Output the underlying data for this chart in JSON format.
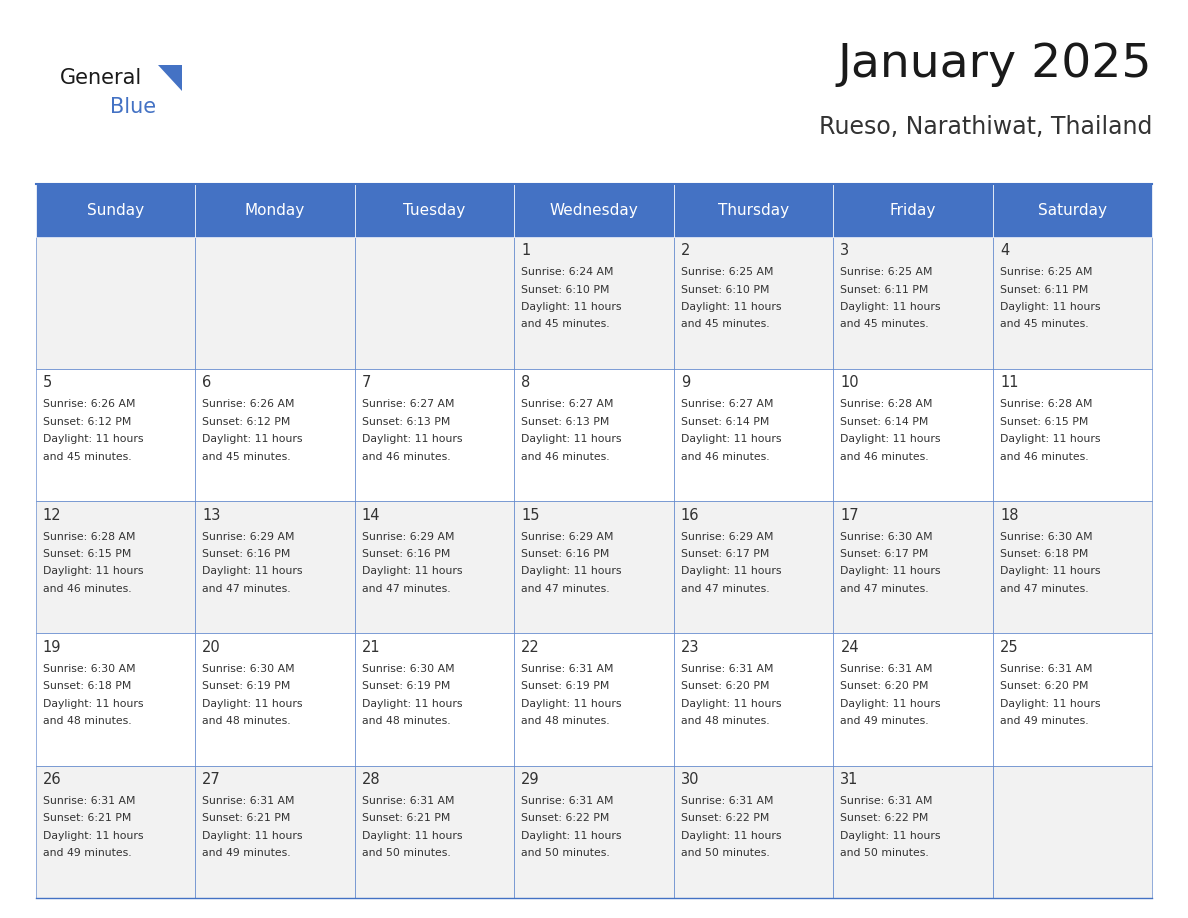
{
  "title": "January 2025",
  "subtitle": "Rueso, Narathiwat, Thailand",
  "days_of_week": [
    "Sunday",
    "Monday",
    "Tuesday",
    "Wednesday",
    "Thursday",
    "Friday",
    "Saturday"
  ],
  "header_bg": "#4472C4",
  "header_text": "#FFFFFF",
  "cell_bg_light": "#F2F2F2",
  "cell_bg_white": "#FFFFFF",
  "border_color": "#4472C4",
  "text_color": "#333333",
  "calendar_data": [
    [
      null,
      null,
      null,
      {
        "day": 1,
        "sunrise": "6:24 AM",
        "sunset": "6:10 PM",
        "daylight": "11 hours and 45 minutes."
      },
      {
        "day": 2,
        "sunrise": "6:25 AM",
        "sunset": "6:10 PM",
        "daylight": "11 hours and 45 minutes."
      },
      {
        "day": 3,
        "sunrise": "6:25 AM",
        "sunset": "6:11 PM",
        "daylight": "11 hours and 45 minutes."
      },
      {
        "day": 4,
        "sunrise": "6:25 AM",
        "sunset": "6:11 PM",
        "daylight": "11 hours and 45 minutes."
      }
    ],
    [
      {
        "day": 5,
        "sunrise": "6:26 AM",
        "sunset": "6:12 PM",
        "daylight": "11 hours and 45 minutes."
      },
      {
        "day": 6,
        "sunrise": "6:26 AM",
        "sunset": "6:12 PM",
        "daylight": "11 hours and 45 minutes."
      },
      {
        "day": 7,
        "sunrise": "6:27 AM",
        "sunset": "6:13 PM",
        "daylight": "11 hours and 46 minutes."
      },
      {
        "day": 8,
        "sunrise": "6:27 AM",
        "sunset": "6:13 PM",
        "daylight": "11 hours and 46 minutes."
      },
      {
        "day": 9,
        "sunrise": "6:27 AM",
        "sunset": "6:14 PM",
        "daylight": "11 hours and 46 minutes."
      },
      {
        "day": 10,
        "sunrise": "6:28 AM",
        "sunset": "6:14 PM",
        "daylight": "11 hours and 46 minutes."
      },
      {
        "day": 11,
        "sunrise": "6:28 AM",
        "sunset": "6:15 PM",
        "daylight": "11 hours and 46 minutes."
      }
    ],
    [
      {
        "day": 12,
        "sunrise": "6:28 AM",
        "sunset": "6:15 PM",
        "daylight": "11 hours and 46 minutes."
      },
      {
        "day": 13,
        "sunrise": "6:29 AM",
        "sunset": "6:16 PM",
        "daylight": "11 hours and 47 minutes."
      },
      {
        "day": 14,
        "sunrise": "6:29 AM",
        "sunset": "6:16 PM",
        "daylight": "11 hours and 47 minutes."
      },
      {
        "day": 15,
        "sunrise": "6:29 AM",
        "sunset": "6:16 PM",
        "daylight": "11 hours and 47 minutes."
      },
      {
        "day": 16,
        "sunrise": "6:29 AM",
        "sunset": "6:17 PM",
        "daylight": "11 hours and 47 minutes."
      },
      {
        "day": 17,
        "sunrise": "6:30 AM",
        "sunset": "6:17 PM",
        "daylight": "11 hours and 47 minutes."
      },
      {
        "day": 18,
        "sunrise": "6:30 AM",
        "sunset": "6:18 PM",
        "daylight": "11 hours and 47 minutes."
      }
    ],
    [
      {
        "day": 19,
        "sunrise": "6:30 AM",
        "sunset": "6:18 PM",
        "daylight": "11 hours and 48 minutes."
      },
      {
        "day": 20,
        "sunrise": "6:30 AM",
        "sunset": "6:19 PM",
        "daylight": "11 hours and 48 minutes."
      },
      {
        "day": 21,
        "sunrise": "6:30 AM",
        "sunset": "6:19 PM",
        "daylight": "11 hours and 48 minutes."
      },
      {
        "day": 22,
        "sunrise": "6:31 AM",
        "sunset": "6:19 PM",
        "daylight": "11 hours and 48 minutes."
      },
      {
        "day": 23,
        "sunrise": "6:31 AM",
        "sunset": "6:20 PM",
        "daylight": "11 hours and 48 minutes."
      },
      {
        "day": 24,
        "sunrise": "6:31 AM",
        "sunset": "6:20 PM",
        "daylight": "11 hours and 49 minutes."
      },
      {
        "day": 25,
        "sunrise": "6:31 AM",
        "sunset": "6:20 PM",
        "daylight": "11 hours and 49 minutes."
      }
    ],
    [
      {
        "day": 26,
        "sunrise": "6:31 AM",
        "sunset": "6:21 PM",
        "daylight": "11 hours and 49 minutes."
      },
      {
        "day": 27,
        "sunrise": "6:31 AM",
        "sunset": "6:21 PM",
        "daylight": "11 hours and 49 minutes."
      },
      {
        "day": 28,
        "sunrise": "6:31 AM",
        "sunset": "6:21 PM",
        "daylight": "11 hours and 50 minutes."
      },
      {
        "day": 29,
        "sunrise": "6:31 AM",
        "sunset": "6:22 PM",
        "daylight": "11 hours and 50 minutes."
      },
      {
        "day": 30,
        "sunrise": "6:31 AM",
        "sunset": "6:22 PM",
        "daylight": "11 hours and 50 minutes."
      },
      {
        "day": 31,
        "sunrise": "6:31 AM",
        "sunset": "6:22 PM",
        "daylight": "11 hours and 50 minutes."
      },
      null
    ]
  ]
}
